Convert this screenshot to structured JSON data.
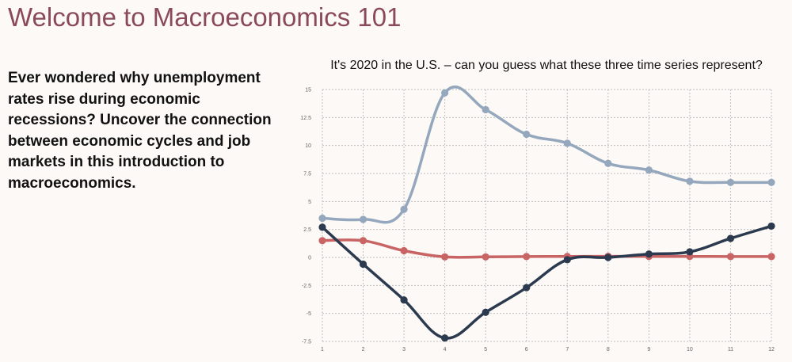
{
  "page": {
    "title": "Welcome to Macroeconomics 101",
    "intro": "Ever wondered why unemployment rates rise during economic recessions? Uncover the connection between economic cycles and job markets in this introduction to macroeconomics."
  },
  "chart_data": {
    "type": "line",
    "title": "It's 2020 in the U.S. – can you guess what these three time series represent?",
    "xlabel": "",
    "ylabel": "",
    "x": [
      1,
      2,
      3,
      4,
      5,
      6,
      7,
      8,
      9,
      10,
      11,
      12
    ],
    "xlim": [
      1,
      12
    ],
    "ylim": [
      -7.5,
      15
    ],
    "y_ticks": [
      "15",
      "12.5",
      "10",
      "7.5",
      "5",
      "2.5",
      "0",
      "-2.5",
      "-5",
      "-7.5"
    ],
    "y_tick_values": [
      15,
      12.5,
      10,
      7.5,
      5,
      2.5,
      0,
      -2.5,
      -5,
      -7.5
    ],
    "x_ticks": [
      "1",
      "2",
      "3",
      "4",
      "5",
      "6",
      "7",
      "8",
      "9",
      "10",
      "11",
      "12"
    ],
    "grid": true,
    "legend": "none",
    "series": [
      {
        "color": "#94a7bd",
        "values": [
          3.5,
          3.4,
          4.3,
          14.7,
          13.2,
          11.0,
          10.2,
          8.4,
          7.8,
          6.8,
          6.7,
          6.7
        ]
      },
      {
        "color": "#c86464",
        "values": [
          1.5,
          1.5,
          0.6,
          0.05,
          0.05,
          0.08,
          0.09,
          0.1,
          0.09,
          0.09,
          0.08,
          0.08
        ]
      },
      {
        "color": "#2b3a4e",
        "values": [
          2.7,
          -0.6,
          -3.8,
          -7.2,
          -4.9,
          -2.7,
          -0.2,
          0.0,
          0.3,
          0.5,
          1.7,
          2.8
        ]
      }
    ]
  }
}
